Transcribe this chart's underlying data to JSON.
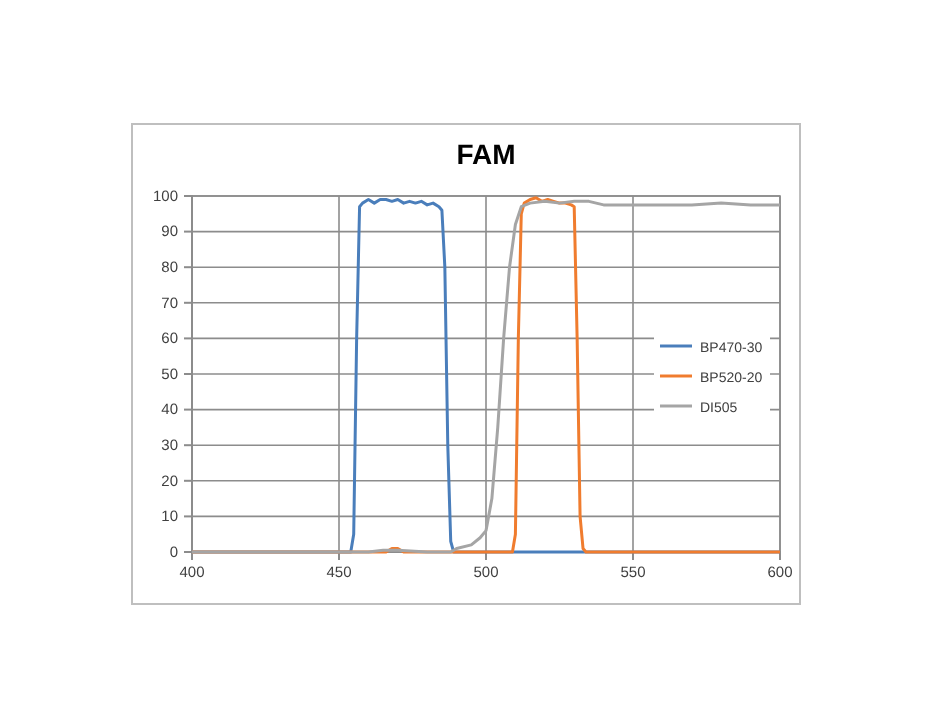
{
  "chart_data": {
    "type": "line",
    "title": "FAM",
    "xlim": [
      400,
      600
    ],
    "xticks": [
      400,
      450,
      500,
      550,
      600
    ],
    "ylim": [
      0,
      100
    ],
    "yticks": [
      0,
      10,
      20,
      30,
      40,
      50,
      60,
      70,
      80,
      90,
      100
    ],
    "grid": true,
    "legend": "right",
    "marker": "none",
    "line_style": "solid",
    "series": [
      {
        "name": "BP470-30",
        "color": "#4a7ebb",
        "x": [
          400,
          454,
          455,
          456,
          457,
          458,
          460,
          462,
          464,
          466,
          468,
          470,
          472,
          474,
          476,
          478,
          480,
          482,
          484,
          485,
          486,
          487,
          488,
          489,
          600
        ],
        "values": [
          0,
          0,
          5,
          60,
          97,
          98,
          99,
          98,
          99,
          99,
          98.5,
          99,
          98,
          98.5,
          98,
          98.5,
          97.5,
          98,
          97,
          96,
          80,
          30,
          3,
          0,
          0
        ]
      },
      {
        "name": "BP520-20",
        "color": "#f07c2e",
        "x": [
          400,
          466,
          468,
          470,
          472,
          509,
          510,
          511,
          512,
          513,
          515,
          517,
          519,
          521,
          523,
          525,
          527,
          529,
          530,
          531,
          532,
          533,
          534,
          600
        ],
        "values": [
          0,
          0,
          1,
          1,
          0,
          0,
          5,
          60,
          95,
          98,
          99,
          99.5,
          98.5,
          99,
          98.5,
          98,
          98,
          97.5,
          97,
          60,
          10,
          1,
          0,
          0
        ]
      },
      {
        "name": "DI505",
        "color": "#a5a5a5",
        "x": [
          400,
          460,
          465,
          470,
          480,
          488,
          490,
          495,
          498,
          500,
          502,
          504,
          506,
          508,
          510,
          512,
          515,
          520,
          525,
          530,
          535,
          540,
          545,
          550,
          560,
          570,
          580,
          590,
          600
        ],
        "values": [
          0,
          0,
          0.5,
          0.5,
          0,
          0,
          1,
          2,
          4,
          6,
          15,
          35,
          60,
          80,
          92,
          97,
          98,
          98.5,
          98,
          98.5,
          98.5,
          97.5,
          97.5,
          97.5,
          97.5,
          97.5,
          98,
          97.5,
          97.5
        ]
      }
    ]
  }
}
